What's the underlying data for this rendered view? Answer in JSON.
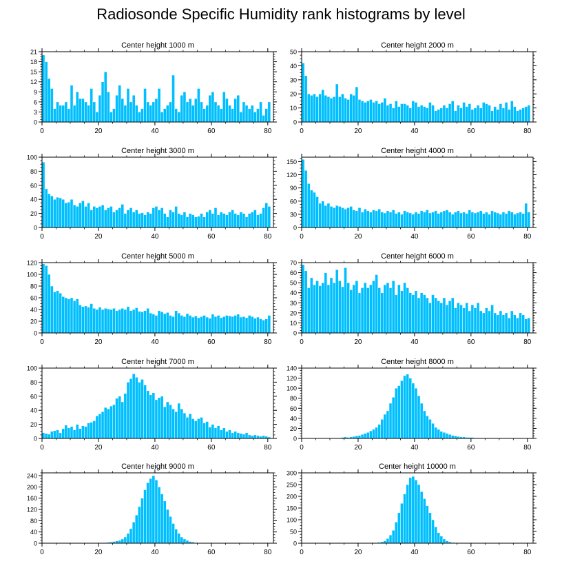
{
  "title": "Radiosonde Specific Humidity rank histograms by level",
  "colors": {
    "bar": "#00bfff",
    "bar_edge": "#ffffff",
    "axis": "#000000"
  },
  "chart_data": [
    {
      "type": "bar",
      "title": "Center height 1000 m",
      "x_start": 0,
      "xlim": [
        0,
        82
      ],
      "ylim": [
        0,
        21
      ],
      "xticks": [
        0,
        20,
        40,
        60,
        80
      ],
      "yticks": [
        0,
        3,
        6,
        9,
        12,
        15,
        18,
        21
      ],
      "values": [
        20,
        18,
        13,
        10,
        4,
        6,
        5,
        5,
        6,
        4,
        11,
        5,
        9,
        7,
        7,
        6,
        5,
        10,
        6,
        3,
        8,
        12,
        15,
        9,
        3,
        4,
        8,
        11,
        7,
        5,
        10,
        6,
        8,
        5,
        3,
        4,
        10,
        6,
        5,
        6,
        7,
        10,
        3,
        4,
        5,
        6,
        14,
        4,
        3,
        8,
        9,
        6,
        7,
        5,
        7,
        10,
        6,
        4,
        5,
        8,
        9,
        6,
        5,
        4,
        9,
        7,
        5,
        4,
        7,
        8,
        3,
        6,
        5,
        4,
        5,
        3,
        4,
        6,
        2,
        4,
        6
      ]
    },
    {
      "type": "bar",
      "title": "Center height 2000 m",
      "x_start": 0,
      "xlim": [
        0,
        82
      ],
      "ylim": [
        0,
        50
      ],
      "xticks": [
        0,
        20,
        40,
        60,
        80
      ],
      "yticks": [
        0,
        10,
        20,
        30,
        40,
        50
      ],
      "values": [
        42,
        33,
        20,
        19,
        20,
        18,
        20,
        23,
        19,
        18,
        17,
        18,
        27,
        18,
        20,
        17,
        16,
        20,
        19,
        25,
        16,
        15,
        14,
        15,
        16,
        14,
        15,
        13,
        14,
        17,
        12,
        13,
        10,
        15,
        11,
        13,
        13,
        12,
        10,
        15,
        14,
        11,
        12,
        11,
        10,
        14,
        12,
        8,
        9,
        10,
        12,
        10,
        13,
        15,
        8,
        12,
        10,
        14,
        11,
        13,
        9,
        10,
        12,
        10,
        14,
        13,
        12,
        8,
        11,
        9,
        13,
        10,
        14,
        9,
        15,
        11,
        8,
        9,
        10,
        11,
        12
      ]
    },
    {
      "type": "bar",
      "title": "Center height 3000 m",
      "x_start": 0,
      "xlim": [
        0,
        82
      ],
      "ylim": [
        0,
        100
      ],
      "xticks": [
        0,
        20,
        40,
        60,
        80
      ],
      "yticks": [
        0,
        20,
        40,
        60,
        80,
        100
      ],
      "values": [
        93,
        55,
        48,
        45,
        40,
        43,
        42,
        40,
        35,
        36,
        40,
        32,
        30,
        35,
        38,
        30,
        35,
        25,
        30,
        28,
        30,
        32,
        25,
        28,
        30,
        22,
        25,
        28,
        33,
        20,
        25,
        28,
        22,
        25,
        20,
        21,
        18,
        22,
        20,
        28,
        30,
        25,
        28,
        20,
        15,
        25,
        22,
        30,
        20,
        18,
        22,
        15,
        20,
        18,
        15,
        16,
        20,
        15,
        22,
        25,
        20,
        28,
        18,
        22,
        20,
        18,
        22,
        25,
        20,
        18,
        22,
        20,
        15,
        20,
        22,
        25,
        18,
        20,
        28,
        35,
        30
      ]
    },
    {
      "type": "bar",
      "title": "Center height 4000 m",
      "x_start": 0,
      "xlim": [
        0,
        82
      ],
      "ylim": [
        0,
        160
      ],
      "xticks": [
        0,
        20,
        40,
        60,
        80
      ],
      "yticks": [
        0,
        30,
        60,
        90,
        120,
        150
      ],
      "values": [
        155,
        130,
        100,
        85,
        80,
        70,
        55,
        60,
        50,
        55,
        48,
        45,
        50,
        48,
        45,
        42,
        45,
        48,
        40,
        38,
        45,
        35,
        42,
        38,
        35,
        40,
        38,
        42,
        35,
        33,
        38,
        35,
        40,
        32,
        35,
        30,
        38,
        35,
        33,
        30,
        35,
        32,
        38,
        35,
        40,
        33,
        35,
        38,
        32,
        35,
        38,
        40,
        35,
        30,
        35,
        38,
        33,
        35,
        32,
        40,
        35,
        33,
        35,
        38,
        32,
        35,
        30,
        38,
        35,
        33,
        30,
        35,
        32,
        38,
        35,
        30,
        33,
        35,
        32,
        55,
        35
      ]
    },
    {
      "type": "bar",
      "title": "Center height 5000 m",
      "x_start": 0,
      "xlim": [
        0,
        82
      ],
      "ylim": [
        0,
        120
      ],
      "xticks": [
        0,
        20,
        40,
        60,
        80
      ],
      "yticks": [
        0,
        20,
        40,
        60,
        80,
        100,
        120
      ],
      "values": [
        118,
        115,
        100,
        80,
        70,
        72,
        68,
        62,
        60,
        58,
        60,
        55,
        58,
        48,
        45,
        46,
        44,
        50,
        42,
        40,
        44,
        40,
        42,
        41,
        40,
        42,
        38,
        40,
        42,
        40,
        45,
        38,
        40,
        43,
        37,
        36,
        38,
        42,
        34,
        32,
        30,
        38,
        36,
        33,
        35,
        30,
        28,
        38,
        34,
        30,
        28,
        33,
        30,
        27,
        29,
        26,
        28,
        30,
        27,
        25,
        32,
        28,
        30,
        26,
        28,
        30,
        29,
        28,
        30,
        32,
        27,
        28,
        26,
        30,
        28,
        25,
        27,
        24,
        22,
        24,
        30
      ]
    },
    {
      "type": "bar",
      "title": "Center height 6000 m",
      "x_start": 0,
      "xlim": [
        0,
        82
      ],
      "ylim": [
        0,
        70
      ],
      "xticks": [
        0,
        20,
        40,
        60,
        80
      ],
      "yticks": [
        0,
        10,
        20,
        30,
        40,
        50,
        60,
        70
      ],
      "values": [
        68,
        62,
        45,
        55,
        48,
        52,
        47,
        50,
        60,
        48,
        55,
        50,
        63,
        52,
        46,
        65,
        50,
        43,
        48,
        52,
        40,
        45,
        50,
        45,
        48,
        52,
        58,
        45,
        40,
        48,
        50,
        45,
        52,
        38,
        48,
        42,
        50,
        45,
        40,
        38,
        42,
        35,
        40,
        38,
        35,
        30,
        38,
        35,
        32,
        30,
        35,
        28,
        32,
        35,
        25,
        30,
        28,
        25,
        30,
        22,
        28,
        25,
        30,
        22,
        20,
        25,
        22,
        28,
        20,
        18,
        22,
        18,
        20,
        15,
        22,
        18,
        15,
        20,
        18,
        14,
        15
      ]
    },
    {
      "type": "bar",
      "title": "Center height 7000 m",
      "x_start": 0,
      "xlim": [
        0,
        82
      ],
      "ylim": [
        0,
        100
      ],
      "xticks": [
        0,
        20,
        40,
        60,
        80
      ],
      "yticks": [
        0,
        20,
        40,
        60,
        80,
        100
      ],
      "values": [
        8,
        7,
        6,
        10,
        11,
        12,
        8,
        14,
        19,
        15,
        17,
        12,
        20,
        14,
        18,
        17,
        22,
        23,
        25,
        32,
        35,
        38,
        44,
        42,
        46,
        48,
        57,
        60,
        52,
        64,
        80,
        85,
        92,
        87,
        80,
        84,
        76,
        68,
        62,
        65,
        55,
        58,
        60,
        45,
        52,
        48,
        42,
        38,
        50,
        42,
        36,
        30,
        35,
        28,
        25,
        28,
        30,
        22,
        24,
        16,
        20,
        15,
        18,
        12,
        15,
        10,
        12,
        8,
        10,
        8,
        7,
        6,
        8,
        5,
        4,
        5,
        4,
        3,
        4,
        3,
        2
      ]
    },
    {
      "type": "bar",
      "title": "Center height 8000 m",
      "x_start": 0,
      "xlim": [
        0,
        82
      ],
      "ylim": [
        0,
        140
      ],
      "xticks": [
        0,
        20,
        40,
        60,
        80
      ],
      "yticks": [
        0,
        20,
        40,
        60,
        80,
        100,
        120,
        140
      ],
      "values": [
        0,
        0,
        0,
        0,
        0,
        0,
        0,
        0,
        0,
        0,
        0,
        0,
        0,
        1,
        2,
        3,
        2,
        3,
        4,
        5,
        6,
        8,
        10,
        12,
        15,
        18,
        22,
        28,
        38,
        48,
        55,
        70,
        82,
        100,
        105,
        115,
        125,
        128,
        120,
        110,
        100,
        85,
        70,
        55,
        45,
        38,
        30,
        22,
        18,
        14,
        12,
        10,
        8,
        6,
        5,
        4,
        3,
        3,
        2,
        2,
        2,
        1,
        1,
        1,
        0,
        0,
        0,
        0,
        0,
        0,
        0,
        0,
        0,
        0,
        0,
        0,
        0,
        0,
        0,
        0,
        0
      ]
    },
    {
      "type": "bar",
      "title": "Center height 9000 m",
      "x_start": 0,
      "xlim": [
        0,
        82
      ],
      "ylim": [
        0,
        250
      ],
      "xticks": [
        0,
        20,
        40,
        60,
        80
      ],
      "yticks": [
        0,
        40,
        80,
        120,
        160,
        200,
        240
      ],
      "values": [
        0,
        0,
        0,
        0,
        0,
        0,
        0,
        0,
        0,
        0,
        0,
        0,
        0,
        0,
        0,
        0,
        0,
        0,
        0,
        0,
        1,
        1,
        2,
        3,
        4,
        6,
        8,
        10,
        15,
        22,
        35,
        52,
        75,
        100,
        130,
        160,
        190,
        215,
        230,
        240,
        225,
        200,
        175,
        150,
        120,
        95,
        70,
        50,
        35,
        22,
        15,
        10,
        6,
        4,
        2,
        1,
        1,
        0,
        0,
        0,
        0,
        0,
        0,
        0,
        0,
        0,
        0,
        0,
        0,
        0,
        0,
        0,
        0,
        0,
        0,
        0,
        0,
        0,
        0,
        0,
        0
      ]
    },
    {
      "type": "bar",
      "title": "Center height 10000 m",
      "x_start": 0,
      "xlim": [
        0,
        82
      ],
      "ylim": [
        0,
        300
      ],
      "xticks": [
        0,
        20,
        40,
        60,
        80
      ],
      "yticks": [
        0,
        50,
        100,
        150,
        200,
        250,
        300
      ],
      "values": [
        0,
        0,
        0,
        0,
        0,
        0,
        0,
        0,
        0,
        0,
        0,
        0,
        0,
        0,
        0,
        0,
        0,
        0,
        0,
        0,
        0,
        0,
        0,
        0,
        0,
        1,
        2,
        4,
        6,
        10,
        20,
        35,
        55,
        90,
        130,
        170,
        210,
        250,
        280,
        285,
        270,
        250,
        220,
        190,
        160,
        130,
        100,
        70,
        45,
        30,
        18,
        10,
        6,
        3,
        2,
        1,
        1,
        0,
        0,
        0,
        0,
        0,
        0,
        0,
        0,
        0,
        0,
        0,
        0,
        0,
        0,
        0,
        0,
        0,
        0,
        0,
        0,
        0,
        0,
        0,
        0
      ]
    }
  ]
}
